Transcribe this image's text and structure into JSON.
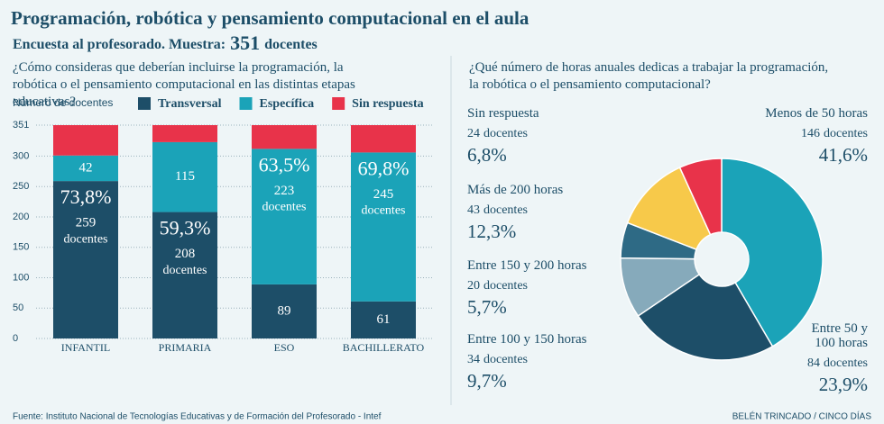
{
  "header": {
    "title": "Programación, robótica y pensamiento computacional en el aula",
    "subtitle": "Encuesta al profesorado. Muestra:",
    "sample": 351,
    "sample_unit": "docentes"
  },
  "chart_data": [
    {
      "type": "bar",
      "stacked": true,
      "question": "¿Cómo consideras que deberían incluirse la programación, la robótica o el pensamiento computacional en las distintas etapas educativas?",
      "y_label": "Número de docentes",
      "unit_label": "docentes",
      "categories": [
        "INFANTIL",
        "PRIMARIA",
        "ESO",
        "BACHILLERATO"
      ],
      "series": [
        {
          "name": "Transversal",
          "color": "#1d4e68",
          "values": [
            259,
            208,
            89,
            61
          ],
          "percent_labels": [
            "73,8%",
            "59,3%",
            null,
            null
          ]
        },
        {
          "name": "Específica",
          "color": "#1ba3b8",
          "values": [
            42,
            115,
            223,
            245
          ],
          "percent_labels": [
            null,
            null,
            "63,5%",
            "69,8%"
          ]
        },
        {
          "name": "Sin respuesta",
          "color": "#e8334a",
          "values": [
            50,
            28,
            39,
            45
          ]
        }
      ],
      "ylim": [
        0,
        351
      ],
      "yticks": [
        0,
        50,
        100,
        150,
        200,
        250,
        300,
        351
      ],
      "grid": true
    },
    {
      "type": "pie",
      "donut": true,
      "question": "¿Qué número de horas anuales dedicas a trabajar la programación, la robótica o el pensamiento computacional?",
      "categories": [
        "Menos de 50 horas",
        "Entre 50 y 100 horas",
        "Entre 100 y 150 horas",
        "Entre 150 y 200 horas",
        "Más de 200 horas",
        "Sin respuesta"
      ],
      "values": [
        41.6,
        23.9,
        9.7,
        5.7,
        12.3,
        6.8
      ],
      "value_labels": [
        "41,6%",
        "23,9%",
        "9,7%",
        "5,7%",
        "12,3%",
        "6,8%"
      ],
      "counts": [
        146,
        84,
        34,
        20,
        43,
        24
      ],
      "count_unit": "docentes",
      "colors": [
        "#1ba3b8",
        "#1d4e68",
        "#86aabb",
        "#2e6a85",
        "#f7c94a",
        "#e8334a"
      ]
    }
  ],
  "footer": {
    "source": "Fuente: Instituto Nacional de Tecnologías Educativas y de Formación del Profesorado - Intef",
    "credit": "BELÉN TRINCADO / CINCO DÍAS"
  }
}
